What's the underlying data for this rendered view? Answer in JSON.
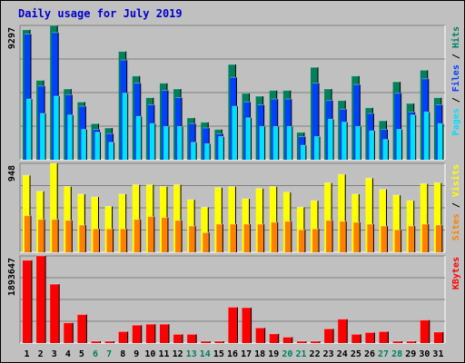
{
  "chart_data": {
    "type": "bar",
    "title": "Daily usage for July 2019",
    "x": [
      "1",
      "2",
      "3",
      "4",
      "5",
      "6",
      "7",
      "8",
      "9",
      "10",
      "11",
      "12",
      "13",
      "14",
      "15",
      "16",
      "17",
      "18",
      "19",
      "20",
      "21",
      "22",
      "23",
      "24",
      "25",
      "26",
      "27",
      "28",
      "29",
      "30",
      "31"
    ],
    "weekend_days": [
      "6",
      "7",
      "13",
      "14",
      "20",
      "21",
      "27",
      "28"
    ],
    "colors": {
      "title": "#0000cc",
      "hits": "#00805c",
      "files": "#0040ff",
      "pages": "#00e0ff",
      "visits": "#ffff00",
      "sites": "#ff8000",
      "kbytes": "#ff0000",
      "weekday_label": "#000000",
      "weekend_label": "#00805c",
      "background": "#c0c0c0"
    },
    "panels": [
      {
        "id": "hits",
        "ymax_label": "9297",
        "ymax": 9297,
        "right_labels": [
          {
            "text": "Pages",
            "color": "#00e0ff"
          },
          {
            "text": " / ",
            "color": "#000000"
          },
          {
            "text": "Files",
            "color": "#0040ff"
          },
          {
            "text": " / ",
            "color": "#000000"
          },
          {
            "text": "Hits",
            "color": "#00805c"
          }
        ],
        "series": [
          {
            "name": "Hits",
            "color": "#00805c",
            "values": [
              9000,
              5500,
              9297,
              4900,
              4000,
              2500,
              2200,
              7500,
              5800,
              4300,
              5300,
              4900,
              2900,
              2600,
              2100,
              6600,
              4600,
              4400,
              4800,
              4800,
              1900,
              6400,
              4900,
              4100,
              5800,
              3600,
              2700,
              5400,
              3900,
              6200,
              4300
            ]
          },
          {
            "name": "Files",
            "color": "#0040ff",
            "values": [
              8700,
              5100,
              8800,
              4500,
              3700,
              2100,
              1800,
              6900,
              5300,
              3800,
              4800,
              4300,
              2500,
              2200,
              1800,
              5700,
              4000,
              3800,
              4200,
              4200,
              1600,
              5300,
              4100,
              3500,
              5200,
              3200,
              2100,
              4600,
              3300,
              5600,
              3800
            ]
          },
          {
            "name": "Pages",
            "color": "#00e0ff",
            "values": [
              4200,
              3200,
              4400,
              3100,
              2100,
              1900,
              1200,
              4600,
              3000,
              2500,
              2300,
              2300,
              1200,
              1100,
              1600,
              3700,
              2900,
              2300,
              2300,
              2300,
              1000,
              1600,
              2800,
              2600,
              2300,
              2000,
              1400,
              2100,
              3100,
              3300,
              2500
            ]
          }
        ]
      },
      {
        "id": "visits",
        "ymax_label": "948",
        "ymax": 948,
        "right_labels": [
          {
            "text": "Sites",
            "color": "#ff8000"
          },
          {
            "text": " / ",
            "color": "#000000"
          },
          {
            "text": "Visits",
            "color": "#ffff00"
          }
        ],
        "series": [
          {
            "name": "Visits",
            "color": "#ffff00",
            "values": [
              820,
              650,
              948,
              700,
              620,
              590,
              490,
              620,
              720,
              720,
              700,
              720,
              560,
              480,
              690,
              700,
              570,
              680,
              700,
              640,
              480,
              550,
              740,
              830,
              620,
              790,
              670,
              610,
              550,
              730,
              740
            ]
          },
          {
            "name": "Sites",
            "color": "#ff8000",
            "values": [
              390,
              350,
              350,
              340,
              290,
              250,
              250,
              250,
              350,
              380,
              370,
              340,
              280,
              210,
              300,
              300,
              300,
              300,
              320,
              330,
              240,
              250,
              340,
              330,
              320,
              300,
              280,
              240,
              280,
              300,
              290
            ]
          }
        ]
      },
      {
        "id": "kbytes",
        "ymax_label": "1893647",
        "ymax": 1893647,
        "right_labels": [
          {
            "text": "KBytes",
            "color": "#ff0000"
          }
        ],
        "series": [
          {
            "name": "KBytes",
            "color": "#ff0000",
            "values": [
              1800000,
              1893647,
              1280000,
              440000,
              620000,
              40000,
              40000,
              250000,
              390000,
              410000,
              410000,
              190000,
              190000,
              40000,
              40000,
              780000,
              770000,
              330000,
              200000,
              130000,
              40000,
              40000,
              310000,
              520000,
              190000,
              230000,
              250000,
              40000,
              40000,
              500000,
              240000
            ]
          }
        ]
      }
    ]
  }
}
